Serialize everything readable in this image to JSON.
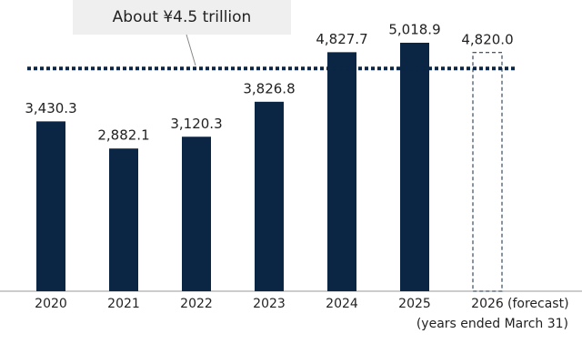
{
  "chart_data": {
    "type": "bar",
    "categories": [
      "2020",
      "2021",
      "2022",
      "2023",
      "2024",
      "2025",
      "2026"
    ],
    "values": [
      3430.3,
      2882.1,
      3120.3,
      3826.8,
      4827.7,
      5018.9,
      4820.0
    ],
    "value_labels": [
      "3,430.3",
      "2,882.1",
      "3,120.3",
      "3,826.8",
      "4,827.7",
      "5,018.9",
      "4,820.0"
    ],
    "forecast": [
      false,
      false,
      false,
      false,
      false,
      false,
      true
    ],
    "forecast_label": "(forecast)",
    "x_note": "(years ended March 31)",
    "color": "#0b2545",
    "reference_line": {
      "value": 4500,
      "label": "About ¥4.5 trillion"
    }
  }
}
